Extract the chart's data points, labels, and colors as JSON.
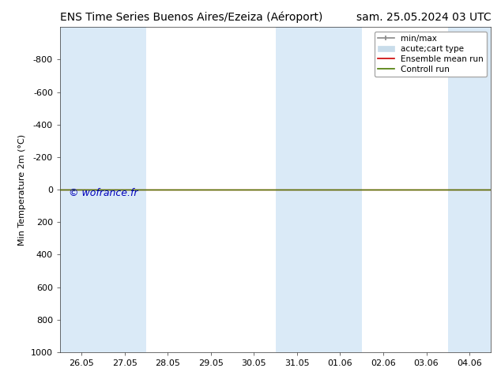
{
  "title_left": "ENS Time Series Buenos Aires/Ezeiza (Aéroport)",
  "title_right": "sam. 25.05.2024 03 UTC",
  "ylabel": "Min Temperature 2m (°C)",
  "ylim_bottom": -1000,
  "ylim_top": 1000,
  "yticks": [
    -800,
    -600,
    -400,
    -200,
    0,
    200,
    400,
    600,
    800,
    1000
  ],
  "xtick_labels": [
    "26.05",
    "27.05",
    "28.05",
    "29.05",
    "30.05",
    "31.05",
    "01.06",
    "02.06",
    "03.06",
    "04.06"
  ],
  "xtick_positions": [
    0,
    1,
    2,
    3,
    4,
    5,
    6,
    7,
    8,
    9
  ],
  "xlim_left": -0.5,
  "xlim_right": 9.5,
  "background_color": "#ffffff",
  "plot_bg_color": "#ffffff",
  "shaded_indices": [
    0,
    1,
    5,
    6,
    9
  ],
  "shaded_color": "#daeaf7",
  "horizontal_line_y": 0,
  "control_run_color": "#4a7a00",
  "ensemble_mean_color": "#cc0000",
  "minmax_color": "#888888",
  "acute_cart_color": "#c8dcea",
  "watermark": "© wofrance.fr",
  "watermark_color": "#0000bb",
  "watermark_fontsize": 9,
  "legend_labels": [
    "min/max",
    "acute;cart type",
    "Ensemble mean run",
    "Controll run"
  ],
  "title_fontsize": 10,
  "tick_fontsize": 8,
  "ylabel_fontsize": 8
}
